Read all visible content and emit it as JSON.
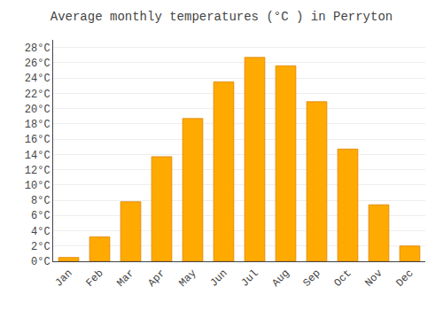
{
  "chart_data": {
    "type": "bar",
    "title": "Average monthly temperatures (°C ) in Perryton",
    "categories": [
      "Jan",
      "Feb",
      "Mar",
      "Apr",
      "May",
      "Jun",
      "Jul",
      "Aug",
      "Sep",
      "Oct",
      "Nov",
      "Dec"
    ],
    "values": [
      0.5,
      3.2,
      7.8,
      13.7,
      18.7,
      23.5,
      26.7,
      25.6,
      20.9,
      14.7,
      7.4,
      2.0
    ],
    "color": "#FFAA00",
    "ylim": [
      0,
      29
    ],
    "yticks": [
      {
        "value": 0,
        "label": "0°C"
      },
      {
        "value": 2,
        "label": "2°C"
      },
      {
        "value": 4,
        "label": "4°C"
      },
      {
        "value": 6,
        "label": "6°C"
      },
      {
        "value": 8,
        "label": "8°C"
      },
      {
        "value": 10,
        "label": "10°C"
      },
      {
        "value": 12,
        "label": "12°C"
      },
      {
        "value": 14,
        "label": "14°C"
      },
      {
        "value": 16,
        "label": "16°C"
      },
      {
        "value": 18,
        "label": "18°C"
      },
      {
        "value": 20,
        "label": "20°C"
      },
      {
        "value": 22,
        "label": "22°C"
      },
      {
        "value": 24,
        "label": "24°C"
      },
      {
        "value": 26,
        "label": "26°C"
      },
      {
        "value": 28,
        "label": "28°C"
      }
    ],
    "grid": true
  }
}
